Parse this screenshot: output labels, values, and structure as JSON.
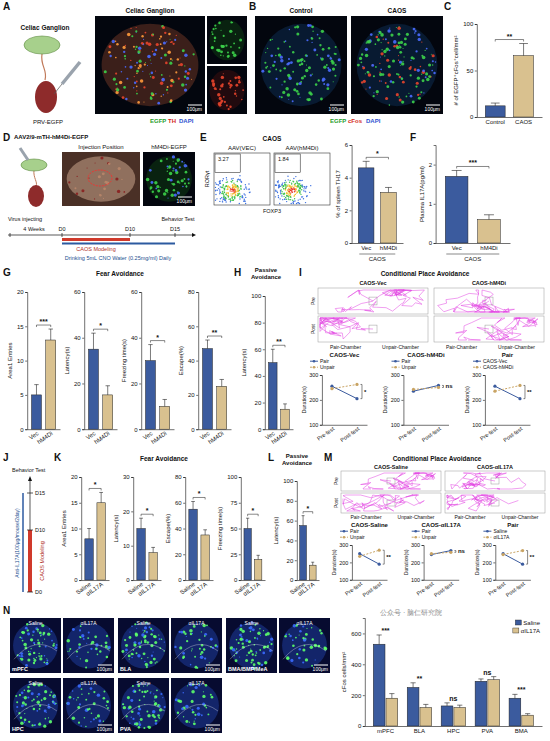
{
  "chart_data": [
    {
      "type": "bar",
      "ylabel": "# of EGFP⁺cFos⁺cell/mm²",
      "categories": [
        "Control",
        "CAOS"
      ],
      "values": [
        12,
        66
      ],
      "errors": [
        3,
        13
      ],
      "colors": [
        "#3b5b9e",
        "#d9c18f"
      ],
      "ylim": [
        0,
        100
      ],
      "yticks": [
        0,
        50,
        100
      ],
      "annotations": [
        "**"
      ]
    },
    {
      "type": "bar",
      "ylabel": "% of spleen TH17",
      "xlabel": "CAOS",
      "categories": [
        "Vec",
        "hM4Di"
      ],
      "values": [
        4.6,
        3.1
      ],
      "errors": [
        0.4,
        0.3
      ],
      "colors": [
        "#3b5b9e",
        "#d9c18f"
      ],
      "ylim": [
        0,
        6
      ],
      "yticks": [
        0,
        2,
        4,
        6
      ],
      "annotations": [
        "*"
      ]
    },
    {
      "type": "bar",
      "ylabel": "Plasma IL17A(pg/ml)",
      "xlabel": "CAOS",
      "categories": [
        "Vec",
        "hM4Di"
      ],
      "values": [
        1.7,
        0.6
      ],
      "errors": [
        0.15,
        0.12
      ],
      "colors": [
        "#3b5b9e",
        "#d9c18f"
      ],
      "ylim": [
        0,
        2.5
      ],
      "yticks": [
        0,
        1,
        2
      ],
      "annotations": [
        "***"
      ]
    },
    {
      "type": "bar",
      "ylabel": "Area1 Entries",
      "categories": [
        "Vec",
        "hM4Di"
      ],
      "values": [
        5,
        13
      ],
      "errors": [
        1.5,
        1.6
      ],
      "colors": [
        "#3b5b9e",
        "#d9c18f"
      ],
      "ylim": [
        0,
        20
      ],
      "yticks": [
        0,
        5,
        10,
        15,
        20
      ],
      "annotations": [
        "***"
      ]
    },
    {
      "type": "bar",
      "ylabel": "Latency(s)",
      "categories": [
        "Vec",
        "hM4Di"
      ],
      "values": [
        35,
        15
      ],
      "errors": [
        7,
        4
      ],
      "colors": [
        "#3b5b9e",
        "#d9c18f"
      ],
      "ylim": [
        0,
        60
      ],
      "yticks": [
        0,
        20,
        40,
        60
      ],
      "annotations": [
        "*"
      ]
    },
    {
      "type": "bar",
      "ylabel": "Freezing time(s)",
      "categories": [
        "Vec",
        "hM4Di"
      ],
      "values": [
        30,
        10
      ],
      "errors": [
        7,
        3
      ],
      "colors": [
        "#3b5b9e",
        "#d9c18f"
      ],
      "ylim": [
        0,
        60
      ],
      "yticks": [
        0,
        20,
        40,
        60
      ],
      "annotations": [
        "*"
      ]
    },
    {
      "type": "bar",
      "ylabel": "Escape(%)",
      "categories": [
        "Vec",
        "hM4Di"
      ],
      "values": [
        47,
        25
      ],
      "errors": [
        5,
        4
      ],
      "colors": [
        "#3b5b9e",
        "#d9c18f"
      ],
      "ylim": [
        0,
        80
      ],
      "yticks": [
        0,
        20,
        40,
        60,
        80
      ],
      "annotations": [
        "**"
      ]
    },
    {
      "type": "bar",
      "ylabel": "Latency(s)",
      "categories": [
        "Vec",
        "hM4Di"
      ],
      "values": [
        50,
        15
      ],
      "errors": [
        10,
        4
      ],
      "colors": [
        "#3b5b9e",
        "#d9c18f"
      ],
      "ylim": [
        0,
        100
      ],
      "yticks": [
        0,
        20,
        40,
        60,
        80,
        100
      ],
      "annotations": [
        "**"
      ]
    },
    {
      "type": "line",
      "title": "CAOS-Vec",
      "ylabel": "Duration(s)",
      "categories": [
        "Pre-test",
        "Post-test"
      ],
      "series": [
        {
          "name": "Pair",
          "color": "#3b5b9e",
          "line_style": "solid",
          "marker": "circle",
          "values": [
            255,
            205
          ]
        },
        {
          "name": "Unpair",
          "color": "#c9a464",
          "line_style": "dashed",
          "marker": "circle",
          "values": [
            245,
            262
          ]
        }
      ],
      "ylim": [
        100,
        300
      ],
      "yticks": [
        100,
        200,
        300
      ],
      "annotations": [
        "*"
      ],
      "legend": "top"
    },
    {
      "type": "line",
      "title": "CAOS-hM4Di",
      "ylabel": "Duration(s)",
      "categories": [
        "Pre-test",
        "Post-test"
      ],
      "series": [
        {
          "name": "Pair",
          "color": "#3b5b9e",
          "line_style": "solid",
          "marker": "circle",
          "values": [
            235,
            258
          ]
        },
        {
          "name": "Unpair",
          "color": "#c9a464",
          "line_style": "dashed",
          "marker": "circle",
          "values": [
            242,
            250
          ]
        }
      ],
      "ylim": [
        100,
        300
      ],
      "yticks": [
        100,
        200,
        300
      ],
      "annotations": [
        "ns"
      ],
      "legend": "top"
    },
    {
      "type": "line",
      "title": "Pair",
      "ylabel": "Duration(s)",
      "categories": [
        "Pre-test",
        "Post-test"
      ],
      "series": [
        {
          "name": "CAOS-Vec",
          "color": "#3b5b9e",
          "line_style": "solid",
          "marker": "circle",
          "values": [
            255,
            205
          ]
        },
        {
          "name": "CAOS-hM4Di",
          "color": "#c9a464",
          "line_style": "dashed",
          "marker": "circle",
          "values": [
            235,
            258
          ]
        }
      ],
      "ylim": [
        100,
        300
      ],
      "yticks": [
        100,
        200,
        300
      ],
      "annotations": [
        "**"
      ],
      "legend": "top"
    },
    {
      "type": "bar",
      "ylabel": "Area1 Entries",
      "categories": [
        "Saline",
        "αIL17A"
      ],
      "values": [
        8,
        15
      ],
      "errors": [
        2,
        2
      ],
      "colors": [
        "#3b5b9e",
        "#d9c18f"
      ],
      "ylim": [
        0,
        20
      ],
      "yticks": [
        0,
        5,
        10,
        15,
        20
      ],
      "annotations": [
        "*"
      ]
    },
    {
      "type": "bar",
      "ylabel": "Latency(s)",
      "categories": [
        "Saline",
        "αIL17A"
      ],
      "values": [
        15,
        8
      ],
      "errors": [
        3,
        1.5
      ],
      "colors": [
        "#3b5b9e",
        "#d9c18f"
      ],
      "ylim": [
        0,
        30
      ],
      "yticks": [
        0,
        10,
        20,
        30
      ],
      "annotations": [
        "*"
      ]
    },
    {
      "type": "bar",
      "ylabel": "Escape(%)",
      "categories": [
        "Saline",
        "αIL17A"
      ],
      "values": [
        55,
        35
      ],
      "errors": [
        6,
        4
      ],
      "colors": [
        "#3b5b9e",
        "#d9c18f"
      ],
      "ylim": [
        0,
        80
      ],
      "yticks": [
        0,
        20,
        40,
        60,
        80
      ],
      "annotations": [
        "*"
      ]
    },
    {
      "type": "bar",
      "ylabel": "Freezing time(s)",
      "categories": [
        "Saline",
        "αIL17A"
      ],
      "values": [
        50,
        20
      ],
      "errors": [
        10,
        4
      ],
      "colors": [
        "#3b5b9e",
        "#d9c18f"
      ],
      "ylim": [
        0,
        100
      ],
      "yticks": [
        0,
        25,
        50,
        75,
        100
      ],
      "annotations": [
        "*"
      ]
    },
    {
      "type": "bar",
      "ylabel": "Latency(s)",
      "categories": [
        "Saline",
        "αIL17A"
      ],
      "values": [
        55,
        15
      ],
      "errors": [
        10,
        3
      ],
      "colors": [
        "#3b5b9e",
        "#d9c18f"
      ],
      "ylim": [
        0,
        100
      ],
      "yticks": [
        0,
        20,
        40,
        60,
        80,
        100
      ],
      "annotations": [
        "*"
      ]
    },
    {
      "type": "line",
      "title": "CAOS-Saline",
      "ylabel": "Duration(s)",
      "categories": [
        "Pre-test",
        "Post-test"
      ],
      "series": [
        {
          "name": "Pair",
          "color": "#3b5b9e",
          "line_style": "solid",
          "marker": "circle",
          "values": [
            250,
            190
          ]
        },
        {
          "name": "Unpair",
          "color": "#c9a464",
          "line_style": "dashed",
          "marker": "circle",
          "values": [
            235,
            270
          ]
        }
      ],
      "ylim": [
        100,
        300
      ],
      "yticks": [
        100,
        200,
        300
      ],
      "annotations": [
        "**"
      ],
      "legend": "top"
    },
    {
      "type": "line",
      "title": "CAOS-αIL17A",
      "ylabel": "Duration(s)",
      "categories": [
        "Pre-test",
        "Post-test"
      ],
      "series": [
        {
          "name": "Pair",
          "color": "#3b5b9e",
          "line_style": "solid",
          "marker": "circle",
          "values": [
            245,
            268
          ]
        },
        {
          "name": "Unpair",
          "color": "#c9a464",
          "line_style": "dashed",
          "marker": "circle",
          "values": [
            250,
            258
          ]
        }
      ],
      "ylim": [
        100,
        300
      ],
      "yticks": [
        100,
        200,
        300
      ],
      "annotations": [
        "ns"
      ],
      "legend": "top"
    },
    {
      "type": "line",
      "title": "Pair",
      "ylabel": "Duration(s)",
      "categories": [
        "Pre-test",
        "Post-test"
      ],
      "series": [
        {
          "name": "Saline",
          "color": "#3b5b9e",
          "line_style": "solid",
          "marker": "circle",
          "values": [
            250,
            190
          ]
        },
        {
          "name": "αIL17A",
          "color": "#c9a464",
          "line_style": "dashed",
          "marker": "circle",
          "values": [
            245,
            268
          ]
        }
      ],
      "ylim": [
        100,
        300
      ],
      "yticks": [
        100,
        200,
        300
      ],
      "annotations": [
        "**"
      ],
      "legend": "top"
    },
    {
      "type": "bar",
      "ylabel": "cFos cells/mm²",
      "categories": [
        "mPFC",
        "BLA",
        "HPC",
        "PVA",
        "BMA"
      ],
      "series": [
        {
          "name": "Saline",
          "color": "#3b5b9e",
          "values": [
            530,
            250,
            130,
            290,
            180
          ],
          "errors": [
            60,
            30,
            20,
            15,
            25
          ]
        },
        {
          "name": "αIL17A",
          "color": "#d9c18f",
          "values": [
            180,
            120,
            120,
            300,
            70
          ],
          "errors": [
            30,
            20,
            15,
            20,
            10
          ]
        }
      ],
      "ylim": [
        0,
        700
      ],
      "yticks": [
        0,
        200,
        400,
        600
      ],
      "annotations": [
        "***",
        "**",
        "ns",
        "ns",
        "***"
      ],
      "legend": "upper right"
    }
  ],
  "panels": {
    "A": {
      "label": "A",
      "schematic_title": "Celiac Ganglion",
      "injection": "PRV-EGFP",
      "image_title": "Celiac Ganglion",
      "channels": [
        "EGFP",
        "TH",
        "DAPI"
      ],
      "scale_bar": "100μm"
    },
    "B": {
      "label": "B",
      "image_titles": [
        "Control",
        "CAOS"
      ],
      "channels": [
        "EGFP",
        "cFos",
        "DAPI"
      ],
      "scale_bar": "100μm"
    },
    "C": {
      "label": "C"
    },
    "D": {
      "label": "D",
      "virus": "AAV2/9-mTH-hM4Di-EGFP",
      "image_titles": [
        "Injection Position",
        "hM4Di-EGFP"
      ],
      "scale_bar": "100μm",
      "timeline": {
        "start": "Virus injecting",
        "interval": "4 Weeks",
        "days": [
          "D0",
          "D10",
          "D15"
        ],
        "modeling": "CAOS Modeling",
        "treatment": "Drinking 5mL CNO Water (0.25mg/ml) Daily",
        "test": "Behavior Test"
      }
    },
    "E": {
      "label": "E",
      "group": "CAOS",
      "plot_titles": [
        "AAV(VEC)",
        "AAV(hM4Di)"
      ],
      "gate_values": [
        3.27,
        1.84
      ],
      "x_axis": "FOXP3",
      "y_axis": "RORγt"
    },
    "F": {
      "label": "F"
    },
    "G": {
      "label": "G",
      "heading": "Fear Avoidance"
    },
    "H": {
      "label": "H",
      "heading": "Passive Avoidance"
    },
    "I": {
      "label": "I",
      "heading": "Conditional Place Avoidance",
      "image_titles": [
        "CAOS-Vec",
        "CAOS-hM4Di"
      ],
      "rows": [
        "Pre",
        "Post"
      ],
      "chambers": [
        "Pair-Chamber",
        "Unpair-Chamber"
      ]
    },
    "J": {
      "label": "J",
      "treatment": "Anti-IL17A(100μg/mouse/2day)",
      "modeling": "CAOS Modeling",
      "test": "Behavior Test",
      "days": [
        "D0",
        "D10",
        "D15"
      ]
    },
    "K": {
      "label": "K",
      "heading": "Fear Avoidance"
    },
    "L": {
      "label": "L",
      "heading": "Passive Avoidance"
    },
    "M": {
      "label": "M",
      "heading": "Conditional Place Avoidance",
      "image_titles": [
        "CAOS-Saline",
        "CAOS-αIL17A"
      ],
      "rows": [
        "Pre",
        "Post"
      ],
      "chambers": [
        "Pair-Chamber",
        "Unpair-Chamber"
      ]
    },
    "N": {
      "label": "N",
      "regions": [
        "mPFC",
        "BLA",
        "BMA/BMP/MeA",
        "HPC",
        "PVA"
      ],
      "conditions": [
        "Saline",
        "αIL17A"
      ],
      "scale_bar": "100μm",
      "watermark": "公众号 · 脑仁研究院"
    }
  }
}
